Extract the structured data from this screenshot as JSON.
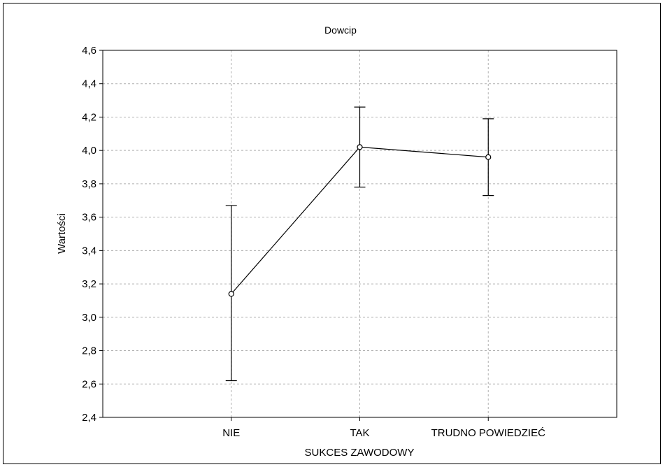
{
  "chart_data": {
    "type": "line",
    "title": "Dowcip",
    "xlabel": "SUKCES ZAWODOWY",
    "ylabel": "Wartości",
    "categories": [
      "NIE",
      "TAK",
      "TRUDNO POWIEDZIEĆ"
    ],
    "series": [
      {
        "values": [
          3.14,
          4.02,
          3.96
        ],
        "error_low": [
          2.62,
          3.78,
          3.73
        ],
        "error_high": [
          3.67,
          4.26,
          4.19
        ]
      }
    ],
    "ylim": [
      2.4,
      4.6
    ],
    "yticks": [
      2.4,
      2.6,
      2.8,
      3.0,
      3.2,
      3.4,
      3.6,
      3.8,
      4.0,
      4.2,
      4.4,
      4.6
    ],
    "ytick_labels": [
      "2,4",
      "2,6",
      "2,8",
      "3,0",
      "3,2",
      "3,4",
      "3,6",
      "3,8",
      "4,0",
      "4,2",
      "4,4",
      "4,6"
    ],
    "grid": true,
    "colors": {
      "line": "#000000",
      "grid": "#b0b0b0",
      "marker_fill": "#ffffff"
    }
  }
}
